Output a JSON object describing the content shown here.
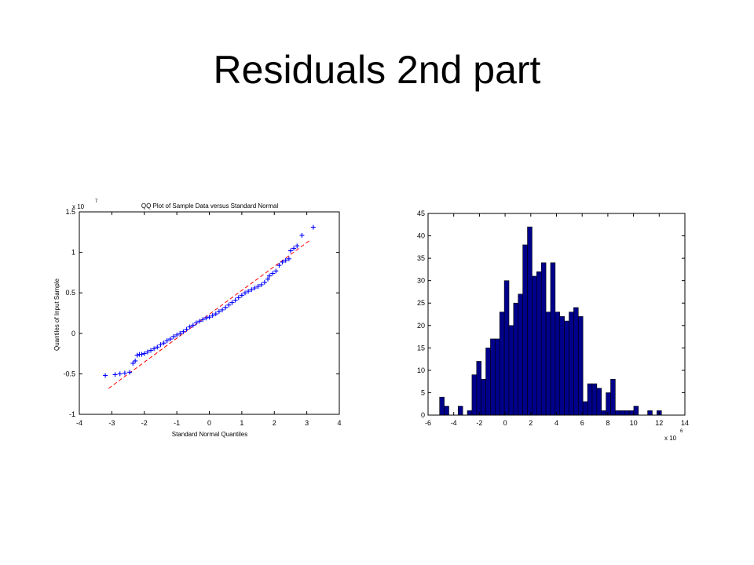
{
  "slide": {
    "title": "Residuals 2nd part"
  },
  "chart_data": [
    {
      "type": "scatter",
      "title": "QQ Plot of Sample Data versus Standard Normal",
      "xlabel": "Standard Normal Quantiles",
      "ylabel": "Quantiles of Input Sample",
      "y_exponent_label": "x 10",
      "y_exponent": "7",
      "xlim": [
        -4,
        4
      ],
      "ylim": [
        -1,
        1.5
      ],
      "xticks": [
        "-4",
        "-3",
        "-2",
        "-1",
        "0",
        "1",
        "2",
        "3",
        "4"
      ],
      "yticks": [
        "-1",
        "-0.5",
        "0",
        "0.5",
        "1",
        "1.5"
      ],
      "reference_line": {
        "x": [
          -3.1,
          3.1
        ],
        "y": [
          -0.68,
          1.15
        ],
        "color": "#ff0000",
        "style": "dashed"
      },
      "marker": "+",
      "marker_color": "#0000ff",
      "points": [
        [
          -3.2,
          -0.52
        ],
        [
          -2.9,
          -0.51
        ],
        [
          -2.75,
          -0.5
        ],
        [
          -2.6,
          -0.49
        ],
        [
          -2.45,
          -0.48
        ],
        [
          -2.35,
          -0.37
        ],
        [
          -2.28,
          -0.34
        ],
        [
          -2.22,
          -0.27
        ],
        [
          -2.15,
          -0.26
        ],
        [
          -2.08,
          -0.26
        ],
        [
          -2.0,
          -0.25
        ],
        [
          -1.9,
          -0.23
        ],
        [
          -1.8,
          -0.21
        ],
        [
          -1.7,
          -0.19
        ],
        [
          -1.6,
          -0.17
        ],
        [
          -1.5,
          -0.14
        ],
        [
          -1.4,
          -0.12
        ],
        [
          -1.3,
          -0.09
        ],
        [
          -1.2,
          -0.07
        ],
        [
          -1.1,
          -0.04
        ],
        [
          -1.0,
          -0.02
        ],
        [
          -0.9,
          0.0
        ],
        [
          -0.8,
          0.02
        ],
        [
          -0.7,
          0.05
        ],
        [
          -0.6,
          0.08
        ],
        [
          -0.5,
          0.1
        ],
        [
          -0.4,
          0.13
        ],
        [
          -0.3,
          0.15
        ],
        [
          -0.2,
          0.17
        ],
        [
          -0.1,
          0.19
        ],
        [
          0.0,
          0.2
        ],
        [
          0.1,
          0.22
        ],
        [
          0.2,
          0.24
        ],
        [
          0.3,
          0.27
        ],
        [
          0.4,
          0.29
        ],
        [
          0.5,
          0.32
        ],
        [
          0.6,
          0.35
        ],
        [
          0.7,
          0.38
        ],
        [
          0.8,
          0.41
        ],
        [
          0.9,
          0.44
        ],
        [
          1.0,
          0.47
        ],
        [
          1.1,
          0.5
        ],
        [
          1.2,
          0.52
        ],
        [
          1.3,
          0.54
        ],
        [
          1.4,
          0.56
        ],
        [
          1.5,
          0.58
        ],
        [
          1.6,
          0.6
        ],
        [
          1.7,
          0.63
        ],
        [
          1.8,
          0.67
        ],
        [
          1.85,
          0.71
        ],
        [
          1.95,
          0.74
        ],
        [
          2.05,
          0.77
        ],
        [
          2.15,
          0.84
        ],
        [
          2.25,
          0.88
        ],
        [
          2.35,
          0.9
        ],
        [
          2.45,
          0.92
        ],
        [
          2.5,
          1.02
        ],
        [
          2.6,
          1.05
        ],
        [
          2.7,
          1.08
        ],
        [
          2.85,
          1.21
        ],
        [
          3.2,
          1.31
        ]
      ]
    },
    {
      "type": "bar",
      "title": "",
      "xlabel": "",
      "ylabel": "",
      "x_exponent_label": "x 10",
      "x_exponent": "6",
      "xlim": [
        -6,
        14
      ],
      "ylim": [
        0,
        45
      ],
      "xticks": [
        "-6",
        "-4",
        "-2",
        "0",
        "2",
        "4",
        "6",
        "8",
        "10",
        "12",
        "14"
      ],
      "yticks": [
        "0",
        "5",
        "10",
        "15",
        "20",
        "25",
        "30",
        "35",
        "40",
        "45"
      ],
      "bar_color": "#00008b",
      "bin_start": -5.1,
      "bin_width": 0.36,
      "values": [
        4,
        2,
        0,
        0,
        2,
        0,
        1,
        9,
        12,
        8,
        15,
        17,
        17,
        23,
        30,
        20,
        25,
        27,
        38,
        42,
        31,
        32,
        34,
        23,
        34,
        23,
        22,
        21,
        23,
        24,
        22,
        3,
        7,
        7,
        6,
        1,
        5,
        8,
        1,
        1,
        1,
        1,
        2,
        0,
        0,
        1,
        0,
        1
      ]
    }
  ]
}
